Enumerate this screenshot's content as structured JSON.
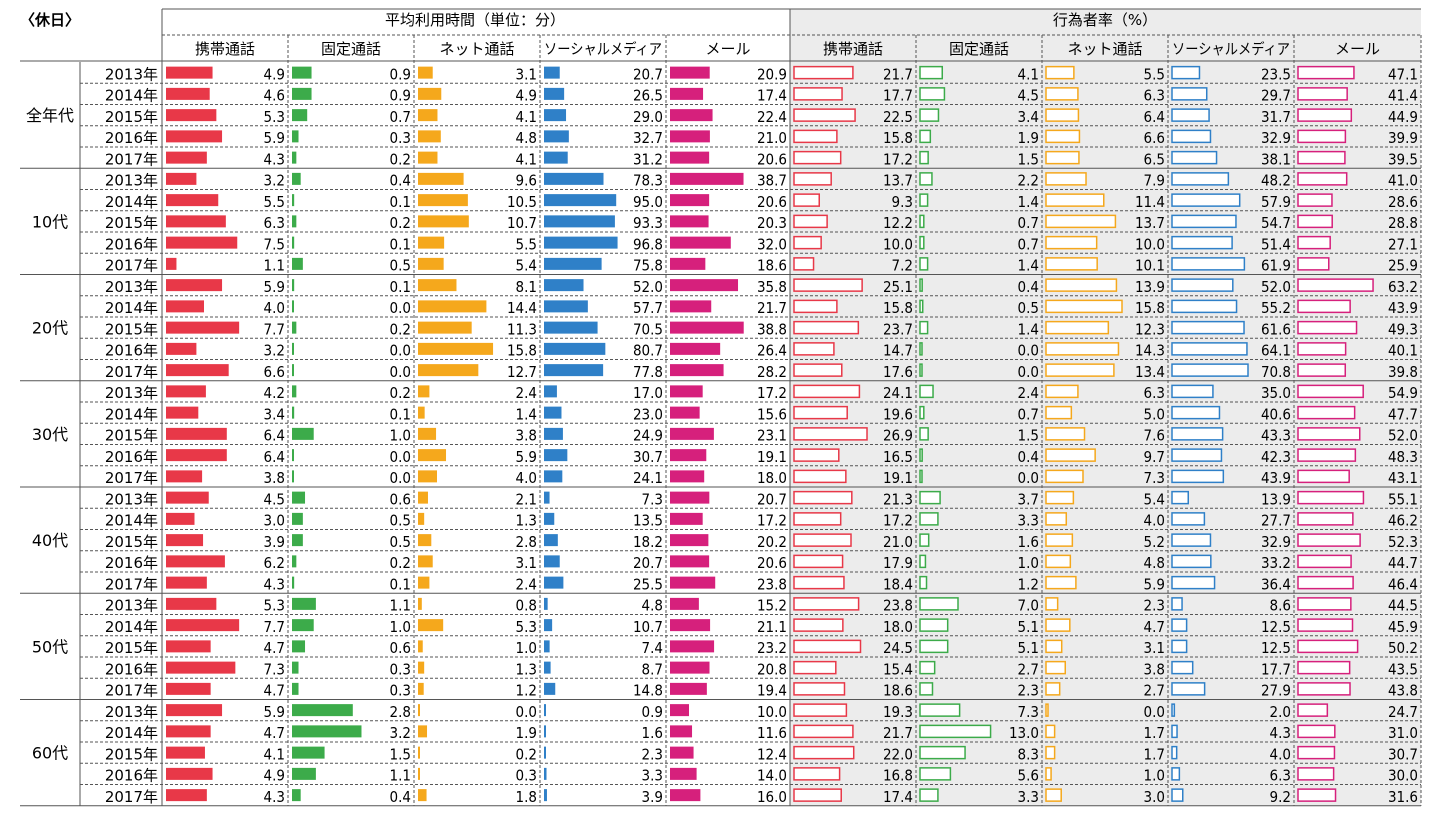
{
  "title": "〈休日〉",
  "sections": {
    "time": "平均利用時間（単位：分）",
    "rate": "行為者率（%）"
  },
  "columns": [
    "携帯通話",
    "固定通話",
    "ネット通話",
    "ソーシャルメディア",
    "メール"
  ],
  "years": [
    "2013年",
    "2014年",
    "2015年",
    "2016年",
    "2017年"
  ],
  "colors": {
    "携帯通話": "#e83848",
    "固定通話": "#3cab4a",
    "ネット通話": "#f5a81c",
    "ソーシャルメディア": "#2f80c8",
    "メール": "#d6207c",
    "rate_bg": "#ececec",
    "grid": "#555555"
  },
  "chart_data": {
    "type": "table",
    "groups": [
      "全年代",
      "10代",
      "20代",
      "30代",
      "40代",
      "50代",
      "60代"
    ],
    "time_scale_max": [
      8,
      3.5,
      16,
      100,
      40
    ],
    "rate_scale_max": [
      28,
      14,
      15,
      65,
      64
    ],
    "rows": [
      {
        "group": "全年代",
        "year": "2013年",
        "time": [
          4.9,
          0.9,
          3.1,
          20.7,
          20.9
        ],
        "rate": [
          21.7,
          4.1,
          5.5,
          23.5,
          47.1
        ]
      },
      {
        "group": "全年代",
        "year": "2014年",
        "time": [
          4.6,
          0.9,
          4.9,
          26.5,
          17.4
        ],
        "rate": [
          17.7,
          4.5,
          6.3,
          29.7,
          41.4
        ]
      },
      {
        "group": "全年代",
        "year": "2015年",
        "time": [
          5.3,
          0.7,
          4.1,
          29.0,
          22.4
        ],
        "rate": [
          22.5,
          3.4,
          6.4,
          31.7,
          44.9
        ]
      },
      {
        "group": "全年代",
        "year": "2016年",
        "time": [
          5.9,
          0.3,
          4.8,
          32.7,
          21.0
        ],
        "rate": [
          15.8,
          1.9,
          6.6,
          32.9,
          39.9
        ]
      },
      {
        "group": "全年代",
        "year": "2017年",
        "time": [
          4.3,
          0.2,
          4.1,
          31.2,
          20.6
        ],
        "rate": [
          17.2,
          1.5,
          6.5,
          38.1,
          39.5
        ]
      },
      {
        "group": "10代",
        "year": "2013年",
        "time": [
          3.2,
          0.4,
          9.6,
          78.3,
          38.7
        ],
        "rate": [
          13.7,
          2.2,
          7.9,
          48.2,
          41.0
        ]
      },
      {
        "group": "10代",
        "year": "2014年",
        "time": [
          5.5,
          0.1,
          10.5,
          95.0,
          20.6
        ],
        "rate": [
          9.3,
          1.4,
          11.4,
          57.9,
          28.6
        ]
      },
      {
        "group": "10代",
        "year": "2015年",
        "time": [
          6.3,
          0.2,
          10.7,
          93.3,
          20.3
        ],
        "rate": [
          12.2,
          0.7,
          13.7,
          54.7,
          28.8
        ]
      },
      {
        "group": "10代",
        "year": "2016年",
        "time": [
          7.5,
          0.1,
          5.5,
          96.8,
          32.0
        ],
        "rate": [
          10.0,
          0.7,
          10.0,
          51.4,
          27.1
        ]
      },
      {
        "group": "10代",
        "year": "2017年",
        "time": [
          1.1,
          0.5,
          5.4,
          75.8,
          18.6
        ],
        "rate": [
          7.2,
          1.4,
          10.1,
          61.9,
          25.9
        ]
      },
      {
        "group": "20代",
        "year": "2013年",
        "time": [
          5.9,
          0.1,
          8.1,
          52.0,
          35.8
        ],
        "rate": [
          25.1,
          0.4,
          13.9,
          52.0,
          63.2
        ]
      },
      {
        "group": "20代",
        "year": "2014年",
        "time": [
          4.0,
          0.0,
          14.4,
          57.7,
          21.7
        ],
        "rate": [
          15.8,
          0.5,
          15.8,
          55.2,
          43.9
        ]
      },
      {
        "group": "20代",
        "year": "2015年",
        "time": [
          7.7,
          0.2,
          11.3,
          70.5,
          38.8
        ],
        "rate": [
          23.7,
          1.4,
          12.3,
          61.6,
          49.3
        ]
      },
      {
        "group": "20代",
        "year": "2016年",
        "time": [
          3.2,
          0.0,
          15.8,
          80.7,
          26.4
        ],
        "rate": [
          14.7,
          0.0,
          14.3,
          64.1,
          40.1
        ]
      },
      {
        "group": "20代",
        "year": "2017年",
        "time": [
          6.6,
          0.0,
          12.7,
          77.8,
          28.2
        ],
        "rate": [
          17.6,
          0.0,
          13.4,
          70.8,
          39.8
        ]
      },
      {
        "group": "30代",
        "year": "2013年",
        "time": [
          4.2,
          0.2,
          2.4,
          17.0,
          17.2
        ],
        "rate": [
          24.1,
          2.4,
          6.3,
          35.0,
          54.9
        ]
      },
      {
        "group": "30代",
        "year": "2014年",
        "time": [
          3.4,
          0.1,
          1.4,
          23.0,
          15.6
        ],
        "rate": [
          19.6,
          0.7,
          5.0,
          40.6,
          47.7
        ]
      },
      {
        "group": "30代",
        "year": "2015年",
        "time": [
          6.4,
          1.0,
          3.8,
          24.9,
          23.1
        ],
        "rate": [
          26.9,
          1.5,
          7.6,
          43.3,
          52.0
        ]
      },
      {
        "group": "30代",
        "year": "2016年",
        "time": [
          6.4,
          0.0,
          5.9,
          30.7,
          19.1
        ],
        "rate": [
          16.5,
          0.4,
          9.7,
          42.3,
          48.3
        ]
      },
      {
        "group": "30代",
        "year": "2017年",
        "time": [
          3.8,
          0.0,
          4.0,
          24.1,
          18.0
        ],
        "rate": [
          19.1,
          0.0,
          7.3,
          43.9,
          43.1
        ]
      },
      {
        "group": "40代",
        "year": "2013年",
        "time": [
          4.5,
          0.6,
          2.1,
          7.3,
          20.7
        ],
        "rate": [
          21.3,
          3.7,
          5.4,
          13.9,
          55.1
        ]
      },
      {
        "group": "40代",
        "year": "2014年",
        "time": [
          3.0,
          0.5,
          1.3,
          13.5,
          17.2
        ],
        "rate": [
          17.2,
          3.3,
          4.0,
          27.7,
          46.2
        ]
      },
      {
        "group": "40代",
        "year": "2015年",
        "time": [
          3.9,
          0.5,
          2.8,
          18.2,
          20.2
        ],
        "rate": [
          21.0,
          1.6,
          5.2,
          32.9,
          52.3
        ]
      },
      {
        "group": "40代",
        "year": "2016年",
        "time": [
          6.2,
          0.2,
          3.1,
          20.7,
          20.6
        ],
        "rate": [
          17.9,
          1.0,
          4.8,
          33.2,
          44.7
        ]
      },
      {
        "group": "40代",
        "year": "2017年",
        "time": [
          4.3,
          0.1,
          2.4,
          25.5,
          23.8
        ],
        "rate": [
          18.4,
          1.2,
          5.9,
          36.4,
          46.4
        ]
      },
      {
        "group": "50代",
        "year": "2013年",
        "time": [
          5.3,
          1.1,
          0.8,
          4.8,
          15.2
        ],
        "rate": [
          23.8,
          7.0,
          2.3,
          8.6,
          44.5
        ]
      },
      {
        "group": "50代",
        "year": "2014年",
        "time": [
          7.7,
          1.0,
          5.3,
          10.7,
          21.1
        ],
        "rate": [
          18.0,
          5.1,
          4.7,
          12.5,
          45.9
        ]
      },
      {
        "group": "50代",
        "year": "2015年",
        "time": [
          4.7,
          0.6,
          1.0,
          7.4,
          23.2
        ],
        "rate": [
          24.5,
          5.1,
          3.1,
          12.5,
          50.2
        ]
      },
      {
        "group": "50代",
        "year": "2016年",
        "time": [
          7.3,
          0.3,
          1.3,
          8.7,
          20.8
        ],
        "rate": [
          15.4,
          2.7,
          3.8,
          17.7,
          43.5
        ]
      },
      {
        "group": "50代",
        "year": "2017年",
        "time": [
          4.7,
          0.3,
          1.2,
          14.8,
          19.4
        ],
        "rate": [
          18.6,
          2.3,
          2.7,
          27.9,
          43.8
        ]
      },
      {
        "group": "60代",
        "year": "2013年",
        "time": [
          5.9,
          2.8,
          0.0,
          0.9,
          10.0
        ],
        "rate": [
          19.3,
          7.3,
          0.0,
          2.0,
          24.7
        ]
      },
      {
        "group": "60代",
        "year": "2014年",
        "time": [
          4.7,
          3.2,
          1.9,
          1.6,
          11.6
        ],
        "rate": [
          21.7,
          13.0,
          1.7,
          4.3,
          31.0
        ]
      },
      {
        "group": "60代",
        "year": "2015年",
        "time": [
          4.1,
          1.5,
          0.2,
          2.3,
          12.4
        ],
        "rate": [
          22.0,
          8.3,
          1.7,
          4.0,
          30.7
        ]
      },
      {
        "group": "60代",
        "year": "2016年",
        "time": [
          4.9,
          1.1,
          0.3,
          3.3,
          14.0
        ],
        "rate": [
          16.8,
          5.6,
          1.0,
          6.3,
          30.0
        ]
      },
      {
        "group": "60代",
        "year": "2017年",
        "time": [
          4.3,
          0.4,
          1.8,
          3.9,
          16.0
        ],
        "rate": [
          17.4,
          3.3,
          3.0,
          9.2,
          31.6
        ]
      }
    ]
  }
}
